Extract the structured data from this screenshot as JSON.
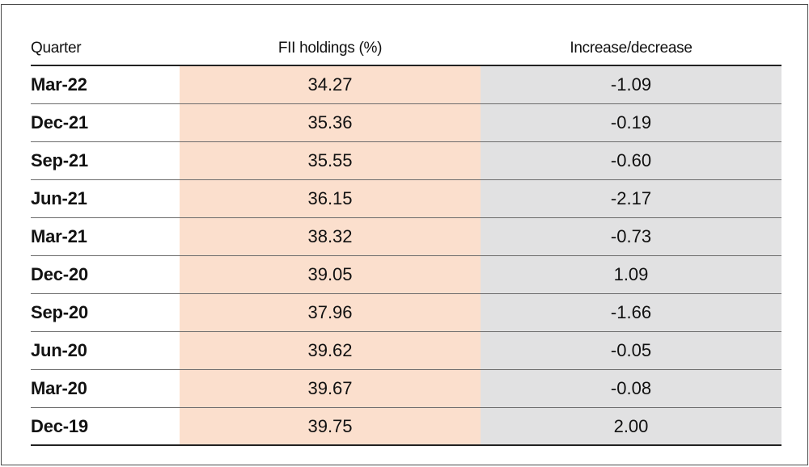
{
  "colors": {
    "fii_column_bg": "#fbdfcd",
    "change_column_bg": "#e1e1e2",
    "text": "#111111"
  },
  "table": {
    "headers": {
      "quarter": "Quarter",
      "fii": "FII holdings (%)",
      "change": "Increase/decrease"
    }
  },
  "chart_data": {
    "type": "table",
    "columns": [
      "Quarter",
      "FII holdings (%)",
      "Increase/decrease"
    ],
    "rows": [
      [
        "Mar-22",
        "34.27",
        "-1.09"
      ],
      [
        "Dec-21",
        "35.36",
        "-0.19"
      ],
      [
        "Sep-21",
        "35.55",
        "-0.60"
      ],
      [
        "Jun-21",
        "36.15",
        "-2.17"
      ],
      [
        "Mar-21",
        "38.32",
        "-0.73"
      ],
      [
        "Dec-20",
        "39.05",
        "1.09"
      ],
      [
        "Sep-20",
        "37.96",
        "-1.66"
      ],
      [
        "Jun-20",
        "39.62",
        "-0.05"
      ],
      [
        "Mar-20",
        "39.67",
        "-0.08"
      ],
      [
        "Dec-19",
        "39.75",
        "2.00"
      ]
    ]
  }
}
